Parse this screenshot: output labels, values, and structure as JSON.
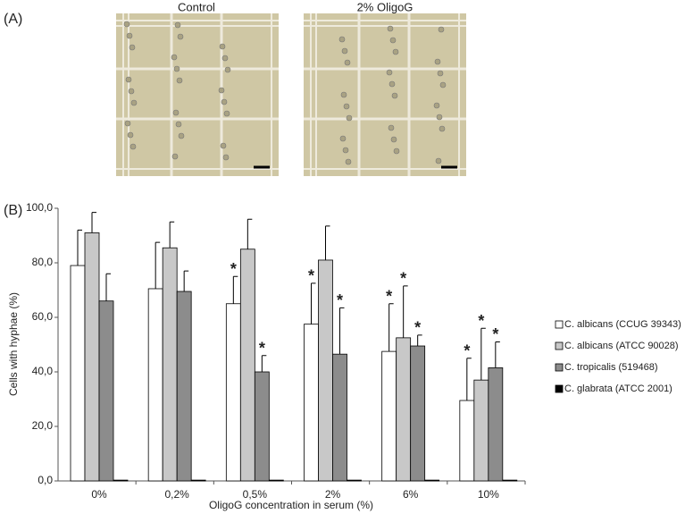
{
  "panels": [
    "(A)",
    "(B)"
  ],
  "images": [
    {
      "title": "Control"
    },
    {
      "title": "2% OligoG"
    }
  ],
  "chart_data": {
    "type": "bar",
    "xlabel": "OligoG concentration in serum (%)",
    "ylabel": "Cells with hyphae (%)",
    "categories": [
      "0%",
      "0,2%",
      "0,5%",
      "2%",
      "6%",
      "10%"
    ],
    "ylim": [
      0,
      100
    ],
    "yticks": [
      {
        "value": 0,
        "label": "0,0"
      },
      {
        "value": 20,
        "label": "20,0"
      },
      {
        "value": 40,
        "label": "40,0"
      },
      {
        "value": 60,
        "label": "60,0"
      },
      {
        "value": 80,
        "label": "80,0"
      },
      {
        "value": 100,
        "label": "100,0"
      }
    ],
    "legend": "right",
    "series": [
      {
        "name": "C. albicans (CCUG 39343)",
        "color": "#ffffff",
        "values": [
          79,
          70.5,
          65,
          57.5,
          47.5,
          29.5
        ],
        "errors": [
          13,
          17,
          10,
          15,
          17.5,
          15.5
        ],
        "markers": [
          null,
          null,
          "*",
          "*",
          "*",
          "*"
        ]
      },
      {
        "name": "C. albicans (ATCC 90028)",
        "color": "#c8c8c8",
        "values": [
          91,
          85.5,
          85,
          81,
          52.5,
          37
        ],
        "errors": [
          7.5,
          9.5,
          11,
          12.5,
          19,
          19
        ],
        "markers": [
          null,
          null,
          null,
          null,
          "*",
          "*"
        ]
      },
      {
        "name": "C. tropicalis (519468)",
        "color": "#8c8c8c",
        "values": [
          66,
          69.5,
          40,
          46.5,
          49.5,
          41.5
        ],
        "errors": [
          10,
          7.5,
          6,
          17,
          4,
          9.5
        ],
        "markers": [
          null,
          null,
          "*",
          "*",
          "*",
          "*"
        ]
      },
      {
        "name": "C. glabrata (ATCC 2001)",
        "color": "#000000",
        "values": [
          0.3,
          0.3,
          0.3,
          0.3,
          0.3,
          0.3
        ]
      }
    ]
  }
}
